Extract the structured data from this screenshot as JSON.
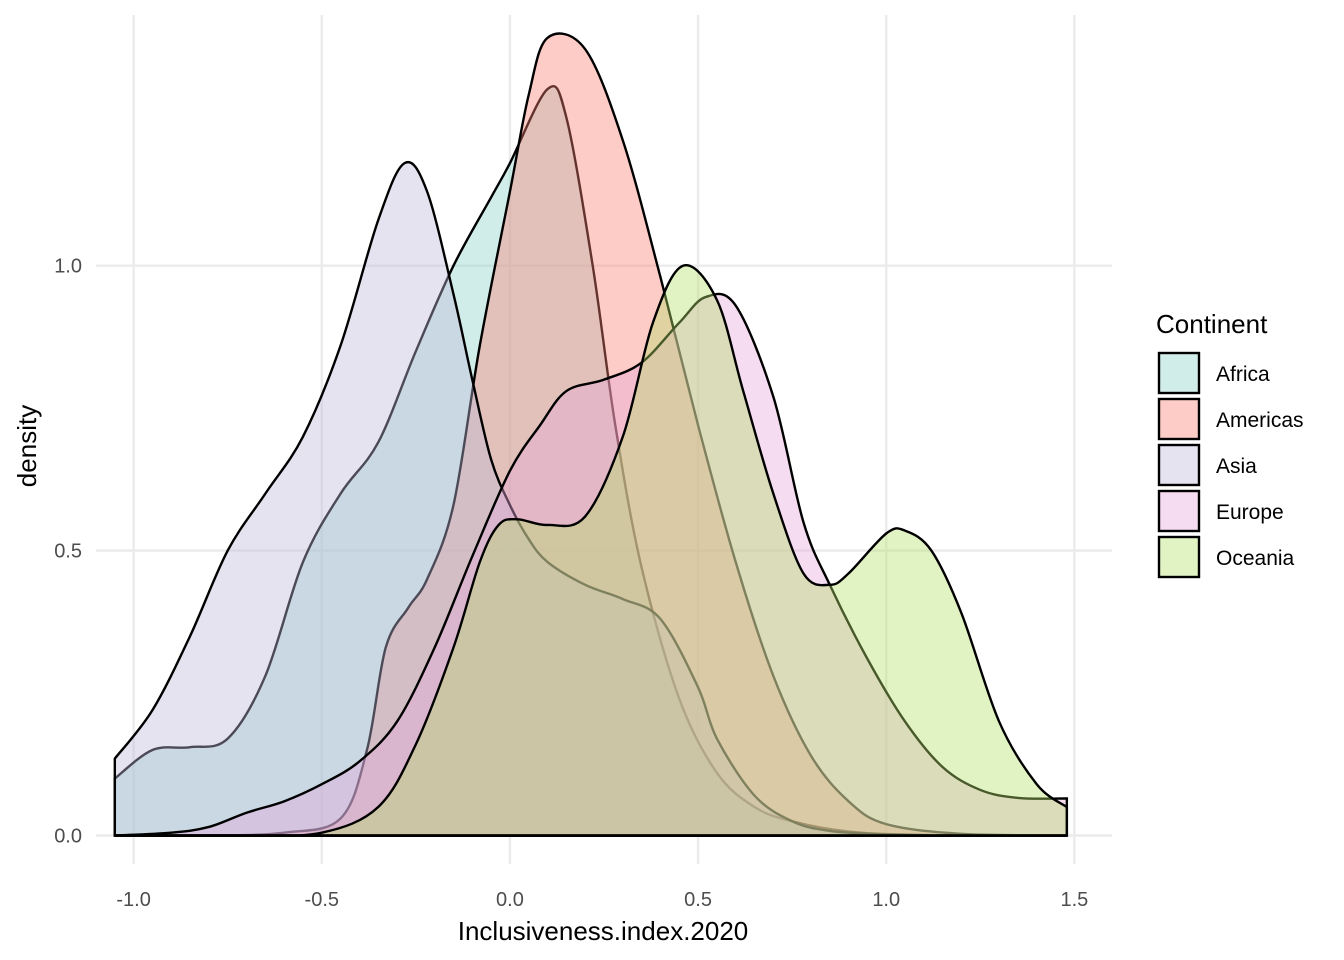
{
  "chart_data": {
    "type": "area",
    "title": "",
    "xlabel": "Inclusiveness.index.2020",
    "ylabel": "density",
    "xlim": [
      -1.1,
      1.6
    ],
    "ylim": [
      -0.05,
      1.44
    ],
    "x_ticks": [
      -1.0,
      -0.5,
      0.0,
      0.5,
      1.0,
      1.5
    ],
    "x_tick_labels": [
      "-1.0",
      "-0.5",
      "0.0",
      "0.5",
      "1.0",
      "1.5"
    ],
    "y_ticks": [
      0.0,
      0.5,
      1.0
    ],
    "y_tick_labels": [
      "0.0",
      "0.5",
      "1.0"
    ],
    "grid": true,
    "legend": {
      "title": "Continent",
      "placement": "right"
    },
    "series": [
      {
        "name": "Africa",
        "color": "#8dd3c7",
        "points": [
          [
            -1.05,
            0.1
          ],
          [
            -0.95,
            0.15
          ],
          [
            -0.85,
            0.155
          ],
          [
            -0.75,
            0.17
          ],
          [
            -0.65,
            0.28
          ],
          [
            -0.55,
            0.48
          ],
          [
            -0.45,
            0.6
          ],
          [
            -0.35,
            0.69
          ],
          [
            -0.25,
            0.85
          ],
          [
            -0.15,
            1.0
          ],
          [
            -0.05,
            1.12
          ],
          [
            0.0,
            1.18
          ],
          [
            0.1,
            1.31
          ],
          [
            0.15,
            1.26
          ],
          [
            0.22,
            1.0
          ],
          [
            0.28,
            0.72
          ],
          [
            0.35,
            0.47
          ],
          [
            0.45,
            0.24
          ],
          [
            0.55,
            0.11
          ],
          [
            0.65,
            0.05
          ],
          [
            0.75,
            0.025
          ],
          [
            0.9,
            0.007
          ],
          [
            1.1,
            0.001
          ],
          [
            1.48,
            0.0
          ]
        ]
      },
      {
        "name": "Americas",
        "color": "#fb8072",
        "points": [
          [
            -1.05,
            0.0
          ],
          [
            -0.8,
            0.0
          ],
          [
            -0.6,
            0.005
          ],
          [
            -0.45,
            0.03
          ],
          [
            -0.38,
            0.15
          ],
          [
            -0.33,
            0.33
          ],
          [
            -0.27,
            0.4
          ],
          [
            -0.22,
            0.45
          ],
          [
            -0.15,
            0.58
          ],
          [
            -0.08,
            0.86
          ],
          [
            0.0,
            1.13
          ],
          [
            0.05,
            1.3
          ],
          [
            0.1,
            1.4
          ],
          [
            0.2,
            1.38
          ],
          [
            0.3,
            1.22
          ],
          [
            0.4,
            0.98
          ],
          [
            0.5,
            0.72
          ],
          [
            0.6,
            0.48
          ],
          [
            0.7,
            0.28
          ],
          [
            0.8,
            0.14
          ],
          [
            0.9,
            0.06
          ],
          [
            1.0,
            0.02
          ],
          [
            1.2,
            0.003
          ],
          [
            1.48,
            0.0
          ]
        ]
      },
      {
        "name": "Asia",
        "color": "#bebada",
        "points": [
          [
            -1.05,
            0.135
          ],
          [
            -0.95,
            0.22
          ],
          [
            -0.85,
            0.35
          ],
          [
            -0.75,
            0.5
          ],
          [
            -0.65,
            0.6
          ],
          [
            -0.55,
            0.7
          ],
          [
            -0.45,
            0.86
          ],
          [
            -0.35,
            1.08
          ],
          [
            -0.28,
            1.18
          ],
          [
            -0.22,
            1.13
          ],
          [
            -0.15,
            0.95
          ],
          [
            -0.1,
            0.8
          ],
          [
            -0.05,
            0.66
          ],
          [
            0.0,
            0.58
          ],
          [
            0.05,
            0.52
          ],
          [
            0.1,
            0.48
          ],
          [
            0.2,
            0.44
          ],
          [
            0.3,
            0.415
          ],
          [
            0.4,
            0.38
          ],
          [
            0.5,
            0.26
          ],
          [
            0.55,
            0.17
          ],
          [
            0.65,
            0.07
          ],
          [
            0.75,
            0.025
          ],
          [
            0.85,
            0.008
          ],
          [
            1.0,
            0.002
          ],
          [
            1.2,
            0.0
          ],
          [
            1.48,
            0.0
          ]
        ]
      },
      {
        "name": "Europe",
        "color": "#e7a8d9",
        "points": [
          [
            -1.05,
            0.0
          ],
          [
            -0.9,
            0.005
          ],
          [
            -0.8,
            0.015
          ],
          [
            -0.7,
            0.04
          ],
          [
            -0.6,
            0.06
          ],
          [
            -0.5,
            0.09
          ],
          [
            -0.4,
            0.13
          ],
          [
            -0.3,
            0.2
          ],
          [
            -0.2,
            0.33
          ],
          [
            -0.1,
            0.49
          ],
          [
            0.0,
            0.64
          ],
          [
            0.08,
            0.72
          ],
          [
            0.15,
            0.78
          ],
          [
            0.25,
            0.8
          ],
          [
            0.35,
            0.83
          ],
          [
            0.45,
            0.9
          ],
          [
            0.52,
            0.945
          ],
          [
            0.6,
            0.93
          ],
          [
            0.7,
            0.77
          ],
          [
            0.78,
            0.55
          ],
          [
            0.85,
            0.44
          ],
          [
            0.95,
            0.31
          ],
          [
            1.05,
            0.2
          ],
          [
            1.15,
            0.12
          ],
          [
            1.25,
            0.08
          ],
          [
            1.35,
            0.066
          ],
          [
            1.48,
            0.065
          ]
        ]
      },
      {
        "name": "Oceania",
        "color": "#b3de69",
        "points": [
          [
            -1.05,
            0.0
          ],
          [
            -0.7,
            0.0
          ],
          [
            -0.5,
            0.005
          ],
          [
            -0.35,
            0.05
          ],
          [
            -0.25,
            0.16
          ],
          [
            -0.15,
            0.33
          ],
          [
            -0.08,
            0.48
          ],
          [
            -0.03,
            0.545
          ],
          [
            0.02,
            0.555
          ],
          [
            0.1,
            0.545
          ],
          [
            0.2,
            0.56
          ],
          [
            0.3,
            0.7
          ],
          [
            0.38,
            0.9
          ],
          [
            0.46,
            1.0
          ],
          [
            0.55,
            0.94
          ],
          [
            0.62,
            0.78
          ],
          [
            0.7,
            0.6
          ],
          [
            0.78,
            0.46
          ],
          [
            0.85,
            0.44
          ],
          [
            0.9,
            0.46
          ],
          [
            1.0,
            0.53
          ],
          [
            1.05,
            0.535
          ],
          [
            1.12,
            0.5
          ],
          [
            1.2,
            0.39
          ],
          [
            1.3,
            0.2
          ],
          [
            1.4,
            0.09
          ],
          [
            1.48,
            0.05
          ]
        ]
      }
    ]
  }
}
